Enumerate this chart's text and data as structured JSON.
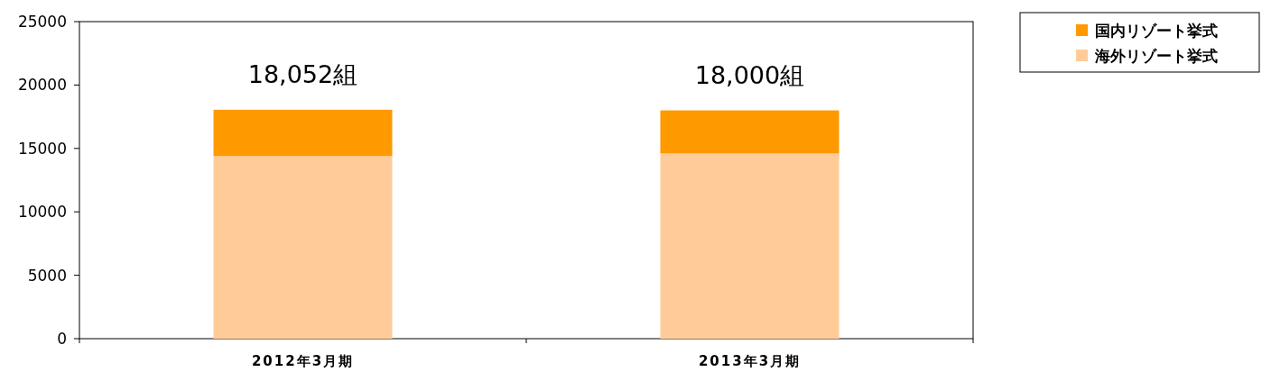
{
  "chart_data": {
    "type": "bar",
    "stacked": true,
    "categories": [
      "2012年3月期",
      "2013年3月期"
    ],
    "series": [
      {
        "name": "海外リゾート挙式",
        "color": "#ffcc99",
        "values": [
          14400,
          14600
        ]
      },
      {
        "name": "国内リゾート挙式",
        "color": "#ff9900",
        "values": [
          3652,
          3400
        ]
      }
    ],
    "totals": [
      "18,052組",
      "18,000組"
    ],
    "ylim": [
      0,
      25000
    ],
    "yticks": [
      0,
      5000,
      10000,
      15000,
      20000,
      25000
    ],
    "grid": false,
    "legend": "top right"
  }
}
